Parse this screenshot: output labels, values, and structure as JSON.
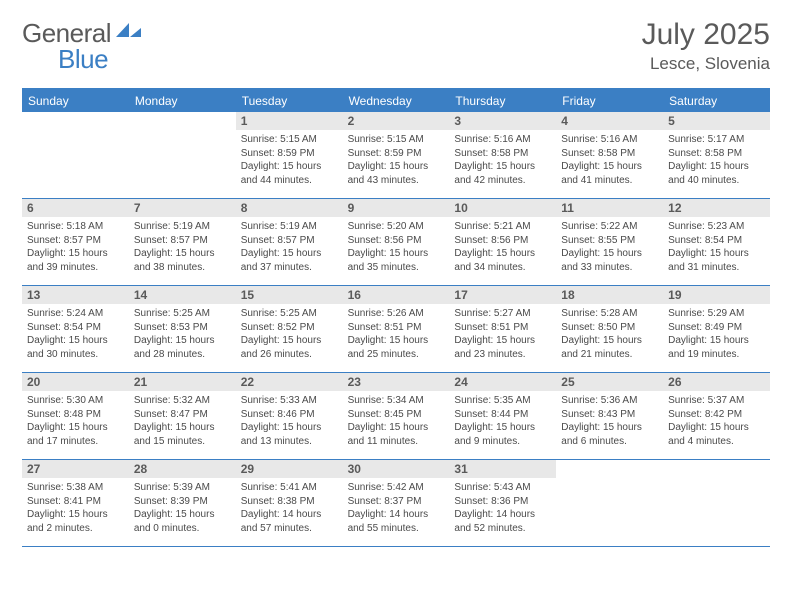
{
  "logo": {
    "part1": "General",
    "part2": "Blue"
  },
  "title": "July 2025",
  "location": "Lesce, Slovenia",
  "colors": {
    "brand": "#3b7fc4",
    "text": "#5a5a5a",
    "dayNumBg": "#e8e8e8",
    "bodyText": "#4a4a4a"
  },
  "dayHeaders": [
    "Sunday",
    "Monday",
    "Tuesday",
    "Wednesday",
    "Thursday",
    "Friday",
    "Saturday"
  ],
  "weeks": [
    [
      {
        "empty": true
      },
      {
        "empty": true
      },
      {
        "num": "1",
        "sunrise": "Sunrise: 5:15 AM",
        "sunset": "Sunset: 8:59 PM",
        "daylight": "Daylight: 15 hours and 44 minutes."
      },
      {
        "num": "2",
        "sunrise": "Sunrise: 5:15 AM",
        "sunset": "Sunset: 8:59 PM",
        "daylight": "Daylight: 15 hours and 43 minutes."
      },
      {
        "num": "3",
        "sunrise": "Sunrise: 5:16 AM",
        "sunset": "Sunset: 8:58 PM",
        "daylight": "Daylight: 15 hours and 42 minutes."
      },
      {
        "num": "4",
        "sunrise": "Sunrise: 5:16 AM",
        "sunset": "Sunset: 8:58 PM",
        "daylight": "Daylight: 15 hours and 41 minutes."
      },
      {
        "num": "5",
        "sunrise": "Sunrise: 5:17 AM",
        "sunset": "Sunset: 8:58 PM",
        "daylight": "Daylight: 15 hours and 40 minutes."
      }
    ],
    [
      {
        "num": "6",
        "sunrise": "Sunrise: 5:18 AM",
        "sunset": "Sunset: 8:57 PM",
        "daylight": "Daylight: 15 hours and 39 minutes."
      },
      {
        "num": "7",
        "sunrise": "Sunrise: 5:19 AM",
        "sunset": "Sunset: 8:57 PM",
        "daylight": "Daylight: 15 hours and 38 minutes."
      },
      {
        "num": "8",
        "sunrise": "Sunrise: 5:19 AM",
        "sunset": "Sunset: 8:57 PM",
        "daylight": "Daylight: 15 hours and 37 minutes."
      },
      {
        "num": "9",
        "sunrise": "Sunrise: 5:20 AM",
        "sunset": "Sunset: 8:56 PM",
        "daylight": "Daylight: 15 hours and 35 minutes."
      },
      {
        "num": "10",
        "sunrise": "Sunrise: 5:21 AM",
        "sunset": "Sunset: 8:56 PM",
        "daylight": "Daylight: 15 hours and 34 minutes."
      },
      {
        "num": "11",
        "sunrise": "Sunrise: 5:22 AM",
        "sunset": "Sunset: 8:55 PM",
        "daylight": "Daylight: 15 hours and 33 minutes."
      },
      {
        "num": "12",
        "sunrise": "Sunrise: 5:23 AM",
        "sunset": "Sunset: 8:54 PM",
        "daylight": "Daylight: 15 hours and 31 minutes."
      }
    ],
    [
      {
        "num": "13",
        "sunrise": "Sunrise: 5:24 AM",
        "sunset": "Sunset: 8:54 PM",
        "daylight": "Daylight: 15 hours and 30 minutes."
      },
      {
        "num": "14",
        "sunrise": "Sunrise: 5:25 AM",
        "sunset": "Sunset: 8:53 PM",
        "daylight": "Daylight: 15 hours and 28 minutes."
      },
      {
        "num": "15",
        "sunrise": "Sunrise: 5:25 AM",
        "sunset": "Sunset: 8:52 PM",
        "daylight": "Daylight: 15 hours and 26 minutes."
      },
      {
        "num": "16",
        "sunrise": "Sunrise: 5:26 AM",
        "sunset": "Sunset: 8:51 PM",
        "daylight": "Daylight: 15 hours and 25 minutes."
      },
      {
        "num": "17",
        "sunrise": "Sunrise: 5:27 AM",
        "sunset": "Sunset: 8:51 PM",
        "daylight": "Daylight: 15 hours and 23 minutes."
      },
      {
        "num": "18",
        "sunrise": "Sunrise: 5:28 AM",
        "sunset": "Sunset: 8:50 PM",
        "daylight": "Daylight: 15 hours and 21 minutes."
      },
      {
        "num": "19",
        "sunrise": "Sunrise: 5:29 AM",
        "sunset": "Sunset: 8:49 PM",
        "daylight": "Daylight: 15 hours and 19 minutes."
      }
    ],
    [
      {
        "num": "20",
        "sunrise": "Sunrise: 5:30 AM",
        "sunset": "Sunset: 8:48 PM",
        "daylight": "Daylight: 15 hours and 17 minutes."
      },
      {
        "num": "21",
        "sunrise": "Sunrise: 5:32 AM",
        "sunset": "Sunset: 8:47 PM",
        "daylight": "Daylight: 15 hours and 15 minutes."
      },
      {
        "num": "22",
        "sunrise": "Sunrise: 5:33 AM",
        "sunset": "Sunset: 8:46 PM",
        "daylight": "Daylight: 15 hours and 13 minutes."
      },
      {
        "num": "23",
        "sunrise": "Sunrise: 5:34 AM",
        "sunset": "Sunset: 8:45 PM",
        "daylight": "Daylight: 15 hours and 11 minutes."
      },
      {
        "num": "24",
        "sunrise": "Sunrise: 5:35 AM",
        "sunset": "Sunset: 8:44 PM",
        "daylight": "Daylight: 15 hours and 9 minutes."
      },
      {
        "num": "25",
        "sunrise": "Sunrise: 5:36 AM",
        "sunset": "Sunset: 8:43 PM",
        "daylight": "Daylight: 15 hours and 6 minutes."
      },
      {
        "num": "26",
        "sunrise": "Sunrise: 5:37 AM",
        "sunset": "Sunset: 8:42 PM",
        "daylight": "Daylight: 15 hours and 4 minutes."
      }
    ],
    [
      {
        "num": "27",
        "sunrise": "Sunrise: 5:38 AM",
        "sunset": "Sunset: 8:41 PM",
        "daylight": "Daylight: 15 hours and 2 minutes."
      },
      {
        "num": "28",
        "sunrise": "Sunrise: 5:39 AM",
        "sunset": "Sunset: 8:39 PM",
        "daylight": "Daylight: 15 hours and 0 minutes."
      },
      {
        "num": "29",
        "sunrise": "Sunrise: 5:41 AM",
        "sunset": "Sunset: 8:38 PM",
        "daylight": "Daylight: 14 hours and 57 minutes."
      },
      {
        "num": "30",
        "sunrise": "Sunrise: 5:42 AM",
        "sunset": "Sunset: 8:37 PM",
        "daylight": "Daylight: 14 hours and 55 minutes."
      },
      {
        "num": "31",
        "sunrise": "Sunrise: 5:43 AM",
        "sunset": "Sunset: 8:36 PM",
        "daylight": "Daylight: 14 hours and 52 minutes."
      },
      {
        "empty": true
      },
      {
        "empty": true
      }
    ]
  ]
}
